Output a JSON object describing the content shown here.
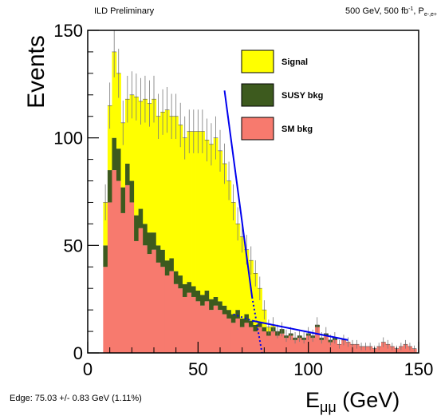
{
  "chart_data": {
    "type": "bar",
    "header_left": "ILD Preliminary",
    "header_right": {
      "base": "500 GeV, 500 fb",
      "sup": "-1",
      "mid": ", P",
      "sub": "e-,e+"
    },
    "ylabel": "Events",
    "xlabel": {
      "base": "E",
      "sub": "μμ",
      "unit": " (GeV)"
    },
    "footer": "Edge: 75.03 +/- 0.83 GeV (1.11%)",
    "xlim": [
      0,
      150
    ],
    "ylim": [
      0,
      150
    ],
    "x_ticks": [
      "0",
      "50",
      "100",
      "150"
    ],
    "y_ticks": [
      "0",
      "50",
      "100",
      "150"
    ],
    "bin_width": 2,
    "bin_start": 5,
    "legend": [
      {
        "label": "Signal",
        "color": "#ffff00"
      },
      {
        "label": "SUSY bkg",
        "color": "#3d5a1e"
      },
      {
        "label": "SM bkg",
        "color": "#f77a6e"
      }
    ],
    "series": [
      {
        "name": "SM bkg",
        "color": "#f77a6e",
        "values": [
          0,
          40,
          70,
          85,
          80,
          65,
          78,
          70,
          52,
          58,
          50,
          46,
          48,
          42,
          40,
          36,
          38,
          32,
          30,
          26,
          28,
          26,
          24,
          22,
          24,
          20,
          22,
          20,
          18,
          16,
          14,
          16,
          12,
          14,
          12,
          10,
          12,
          10,
          8,
          10,
          8,
          9,
          7,
          8,
          6,
          7,
          6,
          8,
          7,
          12,
          6,
          8,
          5,
          6,
          4,
          6,
          5,
          4,
          4,
          3,
          3,
          3,
          2,
          3,
          5,
          4,
          3,
          2,
          3,
          4,
          3,
          2
        ]
      },
      {
        "name": "SUSY bkg",
        "color": "#3d5a1e",
        "values": [
          0,
          10,
          15,
          15,
          15,
          12,
          10,
          10,
          12,
          9,
          10,
          10,
          8,
          8,
          8,
          7,
          6,
          6,
          6,
          6,
          5,
          5,
          5,
          5,
          5,
          5,
          4,
          4,
          4,
          4,
          4,
          4,
          4,
          4,
          3,
          3,
          2,
          2,
          2,
          2,
          2,
          2,
          1,
          1,
          1,
          1,
          1,
          1,
          1,
          1,
          1,
          1,
          1,
          1,
          0,
          0,
          0,
          0,
          0,
          0,
          0,
          0,
          0,
          0,
          0,
          0,
          0,
          0,
          0,
          0,
          0,
          0
        ]
      },
      {
        "name": "Signal",
        "color": "#ffff00",
        "values": [
          0,
          20,
          30,
          40,
          35,
          30,
          30,
          40,
          55,
          50,
          58,
          60,
          62,
          60,
          64,
          70,
          66,
          72,
          70,
          68,
          70,
          72,
          74,
          76,
          70,
          72,
          74,
          70,
          66,
          60,
          52,
          40,
          38,
          30,
          28,
          24,
          16,
          8,
          2,
          1,
          0,
          0,
          0,
          0,
          0,
          0,
          0,
          0,
          0,
          0,
          0,
          0,
          0,
          0,
          0,
          0,
          0,
          0,
          0,
          0,
          0,
          0,
          0,
          0,
          0,
          0,
          0,
          0,
          0,
          0,
          0,
          0
        ]
      }
    ],
    "fit_lines": [
      {
        "x": [
          62,
          74.5
        ],
        "y": [
          122,
          26
        ],
        "style": "solid",
        "color": "#0000ee"
      },
      {
        "x": [
          74.5,
          79
        ],
        "y": [
          26,
          0
        ],
        "style": "dotted",
        "color": "#0000ee"
      },
      {
        "x": [
          66,
          74.5
        ],
        "y": [
          18,
          15
        ],
        "style": "dotted",
        "color": "#0000ee"
      },
      {
        "x": [
          74.5,
          118
        ],
        "y": [
          15,
          6
        ],
        "style": "solid",
        "color": "#0000ee"
      }
    ]
  }
}
